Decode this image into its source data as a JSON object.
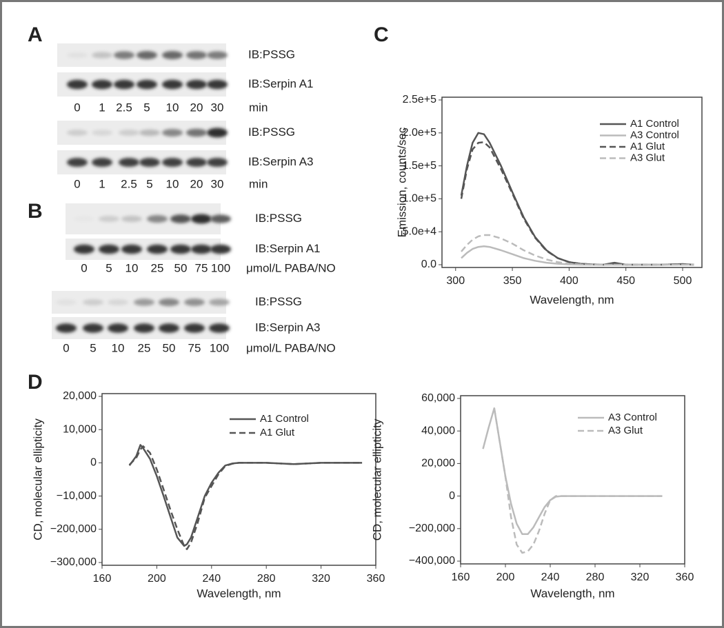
{
  "panels": [
    "A",
    "B",
    "C",
    "D"
  ],
  "blots": [
    {
      "rows": [
        "IB:PSSG",
        "IB:Serpin A1"
      ],
      "lanes": [
        "0",
        "1",
        "2.5",
        "5",
        "10",
        "20",
        "30"
      ],
      "unit": "min"
    },
    {
      "rows": [
        "IB:PSSG",
        "IB:Serpin A3"
      ],
      "lanes": [
        "0",
        "1",
        "2.5",
        "5",
        "10",
        "20",
        "30"
      ],
      "unit": "min"
    },
    {
      "rows": [
        "IB:PSSG",
        "IB:Serpin A1"
      ],
      "lanes": [
        "0",
        "5",
        "10",
        "25",
        "50",
        "75",
        "100"
      ],
      "unit": "μmol/L PABA/NO"
    },
    {
      "rows": [
        "IB:PSSG",
        "IB:Serpin A3"
      ],
      "lanes": [
        "0",
        "5",
        "10",
        "25",
        "50",
        "75",
        "100"
      ],
      "unit": "μmol/L PABA/NO"
    }
  ],
  "chart_data": [
    {
      "type": "line",
      "x_label": "Wavelength, nm",
      "y_label": "Emission, counts/sec",
      "legend": "upper right",
      "x": [
        305,
        310,
        315,
        320,
        325,
        330,
        340,
        350,
        360,
        370,
        380,
        390,
        400,
        410,
        420,
        430,
        440,
        450,
        460,
        480,
        500,
        510
      ],
      "series": [
        {
          "name": "A1 Control",
          "color": "#555555",
          "line_style": "solid",
          "values": [
            105000,
            150000,
            185000,
            200000,
            198000,
            185000,
            150000,
            110000,
            72000,
            42000,
            22000,
            10000,
            4000,
            1500,
            500,
            0,
            3000,
            0,
            0,
            0,
            1000,
            0
          ]
        },
        {
          "name": "A3 Control",
          "color": "#bbbbbb",
          "line_style": "solid",
          "values": [
            10000,
            18000,
            24000,
            27000,
            28000,
            27000,
            22000,
            16000,
            10000,
            6000,
            3000,
            1500,
            500,
            0,
            0,
            0,
            0,
            0,
            0,
            0,
            0,
            0
          ]
        },
        {
          "name": "A1 Glut",
          "color": "#555555",
          "line_style": "dashed",
          "values": [
            100000,
            145000,
            175000,
            185000,
            186000,
            178000,
            145000,
            108000,
            70000,
            41000,
            21000,
            10000,
            4000,
            1500,
            500,
            0,
            2000,
            0,
            0,
            0,
            800,
            0
          ]
        },
        {
          "name": "A3 Glut",
          "color": "#bbbbbb",
          "line_style": "dashed",
          "values": [
            20000,
            30000,
            38000,
            43000,
            45000,
            45000,
            40000,
            32000,
            22000,
            14000,
            8000,
            4000,
            1500,
            500,
            0,
            0,
            0,
            0,
            0,
            0,
            0,
            0
          ]
        }
      ],
      "xlim": [
        288,
        517
      ],
      "xticks": [
        300,
        350,
        400,
        450,
        500
      ],
      "ylim": [
        0,
        250000
      ],
      "yticks": [
        {
          "value": 0,
          "label": "0.0"
        },
        {
          "value": 50000,
          "label": "5.0e+4"
        },
        {
          "value": 100000,
          "label": "1.0e+5"
        },
        {
          "value": 150000,
          "label": "1.5e+5"
        },
        {
          "value": 200000,
          "label": "2.0e+5"
        },
        {
          "value": 250000,
          "label": "2.5e+5"
        }
      ]
    },
    {
      "type": "line",
      "x_label": "Wavelength, nm",
      "y_label": "CD, molecular ellipticity",
      "legend": "upper right",
      "x": [
        180,
        185,
        188,
        190,
        195,
        200,
        205,
        210,
        215,
        220,
        222,
        225,
        230,
        235,
        240,
        245,
        250,
        255,
        260,
        270,
        280,
        300,
        320,
        350
      ],
      "series": [
        {
          "name": "A1 Control",
          "color": "#555555",
          "line_style": "solid",
          "values": [
            -800,
            2000,
            5400,
            4400,
            1200,
            -4000,
            -10000,
            -130000,
            -225000,
            -250000,
            -245000,
            -225000,
            -130000,
            -10000,
            -6000,
            -3000,
            -800,
            -200,
            0,
            0,
            0,
            -400,
            0,
            0
          ]
        },
        {
          "name": "A1 Glut",
          "color": "#555555",
          "line_style": "dashed",
          "values": [
            -600,
            1500,
            4000,
            5000,
            3000,
            -2000,
            -8000,
            -90000,
            -200000,
            -250000,
            -260000,
            -240000,
            -160000,
            -20000,
            -7000,
            -3500,
            -1000,
            -300,
            0,
            0,
            0,
            -400,
            0,
            0
          ]
        }
      ],
      "xlim": [
        160,
        360
      ],
      "xticks": [
        160,
        200,
        240,
        280,
        320,
        360
      ],
      "ylim": [
        -300000,
        20000
      ],
      "yticks": [
        {
          "value": -300000,
          "label": "−300,000"
        },
        {
          "value": -200000,
          "label": "−200,000"
        },
        {
          "value": -10000,
          "label": "−10,000"
        },
        0,
        {
          "value": 10000,
          "label": "10,000"
        },
        {
          "value": 20000,
          "label": "20,000"
        }
      ]
    },
    {
      "type": "line",
      "x_label": "Wavelength, nm",
      "y_label": "CD, molecular ellipticity",
      "legend": "upper right",
      "x": [
        180,
        185,
        190,
        195,
        200,
        205,
        210,
        215,
        220,
        225,
        230,
        235,
        240,
        245,
        250,
        260,
        280,
        300,
        320,
        340
      ],
      "series": [
        {
          "name": "A3 Control",
          "color": "#bbbbbb",
          "line_style": "solid",
          "values": [
            29000,
            42000,
            54000,
            33000,
            12000,
            -46000,
            -170000,
            -234000,
            -234000,
            -192000,
            -129000,
            -67000,
            -25000,
            -4000,
            0,
            0,
            0,
            0,
            0,
            0
          ]
        },
        {
          "name": "A3 Glut",
          "color": "#bbbbbb",
          "line_style": "dashed",
          "values": [
            null,
            null,
            54000,
            33000,
            12000,
            -129000,
            -298000,
            -349000,
            -340000,
            -298000,
            -213000,
            -108000,
            -25000,
            0,
            0,
            0,
            0,
            0,
            0,
            0
          ]
        }
      ],
      "xlim": [
        160,
        360
      ],
      "xticks": [
        160,
        200,
        240,
        280,
        320,
        360
      ],
      "ylim": [
        -400000,
        60000
      ],
      "yticks": [
        {
          "value": -400000,
          "label": "−400,000"
        },
        {
          "value": -200000,
          "label": "−200,000"
        },
        0,
        {
          "value": 20000,
          "label": "20,000"
        },
        {
          "value": 40000,
          "label": "40,000"
        },
        {
          "value": 60000,
          "label": "60,000"
        }
      ]
    }
  ]
}
